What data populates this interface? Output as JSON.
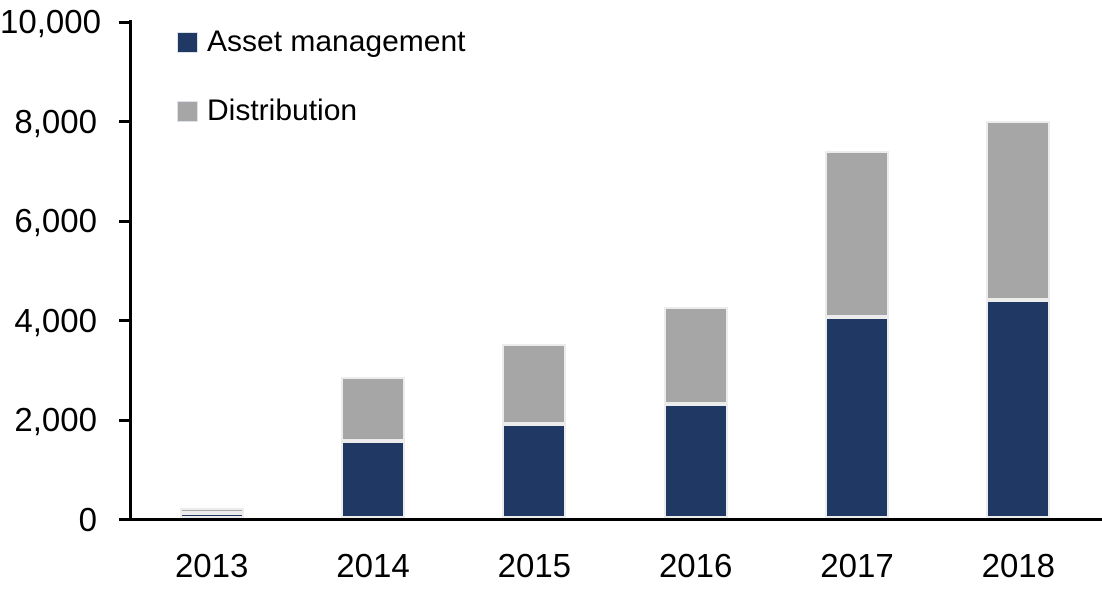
{
  "chart_data": {
    "type": "bar",
    "stacked": true,
    "title": "",
    "xlabel": "",
    "ylabel": "",
    "categories": [
      "2013",
      "2014",
      "2015",
      "2016",
      "2017",
      "2018"
    ],
    "series": [
      {
        "name": "Asset management",
        "color": "#1F3864",
        "values": [
          100,
          1550,
          1900,
          2300,
          4050,
          4400
        ]
      },
      {
        "name": "Distribution",
        "color": "#A6A6A6",
        "values": [
          100,
          1300,
          1600,
          1950,
          3350,
          3600
        ]
      }
    ],
    "ylim": [
      0,
      10000
    ],
    "y_ticks": [
      0,
      2000,
      4000,
      6000,
      8000,
      10000
    ],
    "y_tick_labels": [
      "10,000",
      "8,000",
      "6,000",
      "4,000",
      "2,000",
      "0"
    ],
    "grid": false,
    "legend_position": "top-left"
  },
  "colors": {
    "background": "#FFFFFF",
    "axis": "#000000",
    "asset_management": "#1F3864",
    "distribution": "#A6A6A6",
    "bar_border": "#ECECEC"
  }
}
